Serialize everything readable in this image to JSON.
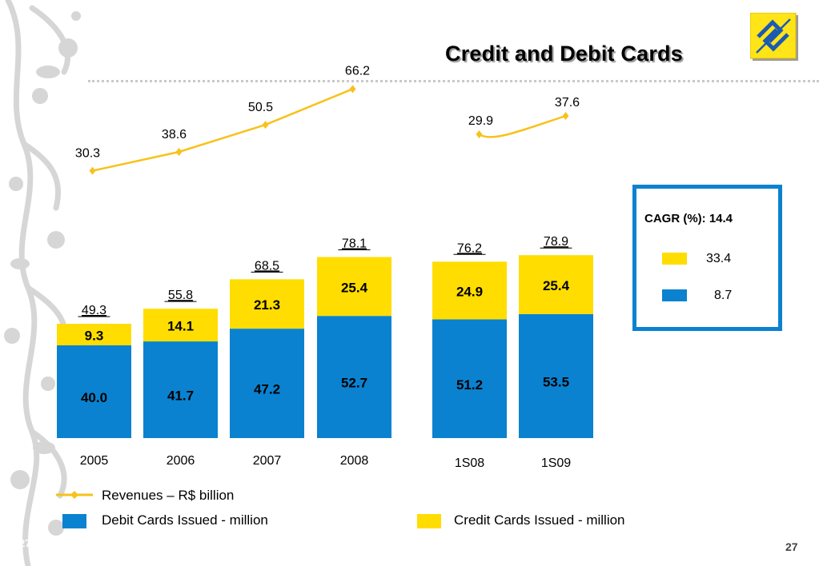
{
  "slide": {
    "title": "Credit and Debit Cards",
    "page_number": "27",
    "page_number_watermark": "27"
  },
  "colors": {
    "debit": "#0a82d0",
    "credit": "#ffdd00",
    "revenue_line": "#f7c21a",
    "cagr_border": "#0a82d0"
  },
  "cagr": {
    "title": "CAGR (%): 14.4",
    "credit_value": "33.4",
    "debit_value": "8.7"
  },
  "legend": {
    "revenues": "Revenues – R$ billion",
    "debit": "Debit Cards Issued - million",
    "credit": "Credit Cards Issued - million"
  },
  "chart_data": {
    "type": "bar",
    "stacked": true,
    "title": "Credit and Debit Cards",
    "groups": [
      {
        "name": "annual",
        "categories": [
          "2005",
          "2006",
          "2007",
          "2008"
        ]
      },
      {
        "name": "semester",
        "categories": [
          "1S08",
          "1S09"
        ]
      }
    ],
    "categories": [
      "2005",
      "2006",
      "2007",
      "2008",
      "1S08",
      "1S09"
    ],
    "series": [
      {
        "name": "Debit Cards Issued - million",
        "values": [
          40.0,
          41.7,
          47.2,
          52.7,
          51.2,
          53.5
        ]
      },
      {
        "name": "Credit Cards Issued - million",
        "values": [
          9.3,
          14.1,
          21.3,
          25.4,
          24.9,
          25.4
        ]
      }
    ],
    "totals": [
      49.3,
      55.8,
      68.5,
      78.1,
      76.2,
      78.9
    ],
    "line_series": {
      "name": "Revenues – R$ billion",
      "type": "line",
      "segments": [
        {
          "categories": [
            "2005",
            "2006",
            "2007",
            "2008"
          ],
          "values": [
            30.3,
            38.6,
            50.5,
            66.2
          ]
        },
        {
          "categories": [
            "1S08",
            "1S09"
          ],
          "values": [
            29.9,
            37.6
          ]
        }
      ]
    },
    "xlabel": "",
    "ylabel": "",
    "grid": false,
    "legend_position": "bottom-left"
  }
}
